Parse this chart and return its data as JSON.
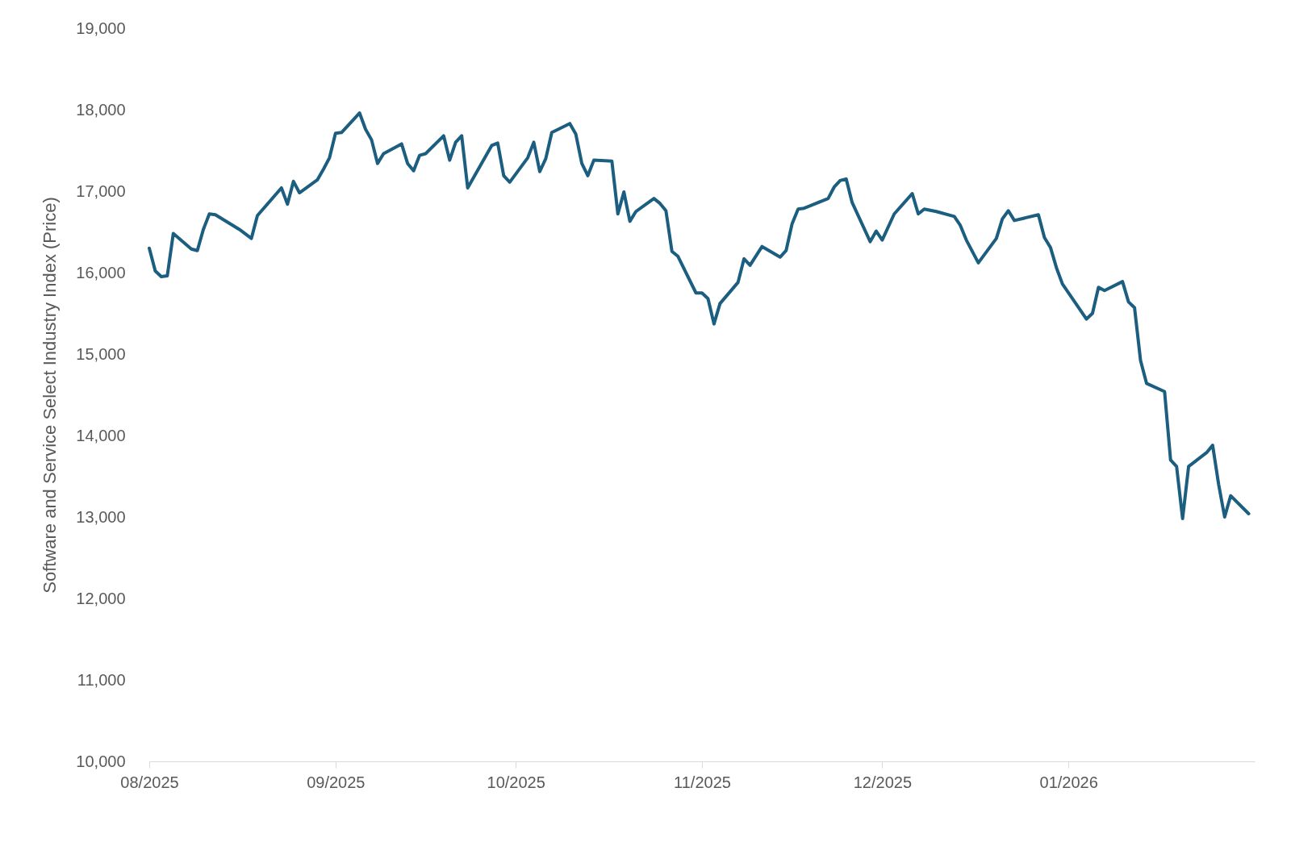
{
  "chart_data": {
    "type": "line",
    "ylabel": "Software and Service Select Industry Index (Price)",
    "xlim": [
      "2025-08-01",
      "2026-02-01"
    ],
    "xticks": [
      {
        "value": "2025-08-01",
        "label": "08/2025"
      },
      {
        "value": "2025-09-01",
        "label": "09/2025"
      },
      {
        "value": "2025-10-01",
        "label": "10/2025"
      },
      {
        "value": "2025-11-01",
        "label": "11/2025"
      },
      {
        "value": "2025-12-01",
        "label": "12/2025"
      },
      {
        "value": "2026-01-01",
        "label": "01/2026"
      }
    ],
    "ylim": [
      10000,
      19000
    ],
    "yticks": [
      {
        "value": 10000,
        "label": "10,000"
      },
      {
        "value": 11000,
        "label": "11,000"
      },
      {
        "value": 12000,
        "label": "12,000"
      },
      {
        "value": 13000,
        "label": "13,000"
      },
      {
        "value": 14000,
        "label": "14,000"
      },
      {
        "value": 15000,
        "label": "15,000"
      },
      {
        "value": 16000,
        "label": "16,000"
      },
      {
        "value": 17000,
        "label": "17,000"
      },
      {
        "value": 18000,
        "label": "18,000"
      },
      {
        "value": 19000,
        "label": "19,000"
      }
    ],
    "grid": false,
    "marker": "none",
    "line_style": "solid",
    "x": [
      "2025-08-01",
      "2025-08-02",
      "2025-08-03",
      "2025-08-04",
      "2025-08-05",
      "2025-08-08",
      "2025-08-09",
      "2025-08-10",
      "2025-08-11",
      "2025-08-12",
      "2025-08-16",
      "2025-08-18",
      "2025-08-19",
      "2025-08-23",
      "2025-08-24",
      "2025-08-25",
      "2025-08-26",
      "2025-08-29",
      "2025-08-30",
      "2025-08-31",
      "2025-09-01",
      "2025-09-02",
      "2025-09-05",
      "2025-09-06",
      "2025-09-07",
      "2025-09-08",
      "2025-09-09",
      "2025-09-12",
      "2025-09-13",
      "2025-09-14",
      "2025-09-15",
      "2025-09-16",
      "2025-09-19",
      "2025-09-20",
      "2025-09-21",
      "2025-09-22",
      "2025-09-23",
      "2025-09-27",
      "2025-09-28",
      "2025-09-29",
      "2025-09-30",
      "2025-10-03",
      "2025-10-04",
      "2025-10-05",
      "2025-10-06",
      "2025-10-07",
      "2025-10-10",
      "2025-10-11",
      "2025-10-12",
      "2025-10-13",
      "2025-10-14",
      "2025-10-17",
      "2025-10-18",
      "2025-10-19",
      "2025-10-20",
      "2025-10-21",
      "2025-10-24",
      "2025-10-25",
      "2025-10-26",
      "2025-10-27",
      "2025-10-28",
      "2025-10-31",
      "2025-11-01",
      "2025-11-02",
      "2025-11-03",
      "2025-11-04",
      "2025-11-07",
      "2025-11-08",
      "2025-11-09",
      "2025-11-11",
      "2025-11-14",
      "2025-11-15",
      "2025-11-16",
      "2025-11-17",
      "2025-11-18",
      "2025-11-22",
      "2025-11-23",
      "2025-11-24",
      "2025-11-25",
      "2025-11-26",
      "2025-11-29",
      "2025-11-30",
      "2025-12-01",
      "2025-12-03",
      "2025-12-06",
      "2025-12-07",
      "2025-12-08",
      "2025-12-10",
      "2025-12-13",
      "2025-12-14",
      "2025-12-15",
      "2025-12-17",
      "2025-12-20",
      "2025-12-21",
      "2025-12-22",
      "2025-12-23",
      "2025-12-27",
      "2025-12-28",
      "2025-12-29",
      "2025-12-30",
      "2025-12-31",
      "2026-01-04",
      "2026-01-05",
      "2026-01-06",
      "2026-01-07",
      "2026-01-10",
      "2026-01-11",
      "2026-01-12",
      "2026-01-13",
      "2026-01-14",
      "2026-01-17",
      "2026-01-18",
      "2026-01-19",
      "2026-01-20",
      "2026-01-21",
      "2026-01-24",
      "2026-01-25",
      "2026-01-26",
      "2026-01-27",
      "2026-01-28",
      "2026-01-31"
    ],
    "series": [
      {
        "color": "#1b5e80",
        "values": [
          16300,
          16020,
          15950,
          15960,
          16480,
          16290,
          16270,
          16530,
          16720,
          16710,
          16530,
          16420,
          16700,
          17040,
          16840,
          17120,
          16980,
          17140,
          17270,
          17410,
          17710,
          17720,
          17960,
          17760,
          17630,
          17340,
          17460,
          17580,
          17340,
          17250,
          17440,
          17460,
          17680,
          17380,
          17600,
          17680,
          17040,
          17560,
          17590,
          17190,
          17110,
          17410,
          17600,
          17240,
          17400,
          17720,
          17830,
          17700,
          17340,
          17190,
          17380,
          17370,
          16720,
          16990,
          16630,
          16750,
          16910,
          16850,
          16760,
          16260,
          16200,
          15750,
          15750,
          15680,
          15370,
          15620,
          15880,
          16170,
          16090,
          16320,
          16190,
          16270,
          16600,
          16780,
          16790,
          16910,
          17050,
          17130,
          17150,
          16860,
          16380,
          16510,
          16400,
          16720,
          16970,
          16720,
          16780,
          16750,
          16690,
          16580,
          16400,
          16120,
          16420,
          16660,
          16760,
          16640,
          16710,
          16430,
          16310,
          16060,
          15860,
          15430,
          15500,
          15820,
          15780,
          15890,
          15640,
          15570,
          14920,
          14640,
          14540,
          13700,
          13620,
          12980,
          13620,
          13790,
          13880,
          13400,
          13000,
          13260,
          13040
        ]
      }
    ]
  }
}
